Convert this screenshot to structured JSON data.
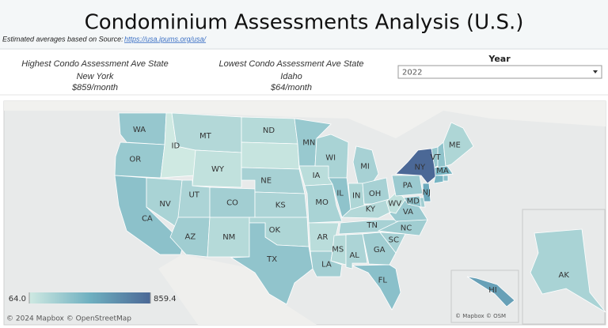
{
  "header": {
    "title": "Condominium Assessments Analysis (U.S.)",
    "source_label": "Estimated averages based on Source:",
    "source_link": "https://usa.ipums.org/usa/"
  },
  "kpis": [
    {
      "label": "Highest Condo Assessment Ave State",
      "state": "New York",
      "value": "$859/month"
    },
    {
      "label": "Lowest Condo Assessment Ave State",
      "state": "Idaho",
      "value": "$64/month"
    }
  ],
  "filter": {
    "label": "Year",
    "value": "2022"
  },
  "map": {
    "legend": {
      "min": {
        "value": 64,
        "label": "64.0"
      },
      "max": 859.4
    },
    "attribution": "© 2024 Mapbox © OpenStreetMap",
    "inset_attribution": "© Mapbox © OSM",
    "states": [
      {
        "abbr": "WA",
        "value": 300
      },
      {
        "abbr": "OR",
        "value": 290
      },
      {
        "abbr": "CA",
        "value": 340
      },
      {
        "abbr": "NV",
        "value": 220
      },
      {
        "abbr": "ID",
        "value": 64
      },
      {
        "abbr": "MT",
        "value": 180
      },
      {
        "abbr": "WY",
        "value": 120
      },
      {
        "abbr": "UT",
        "value": 210
      },
      {
        "abbr": "AZ",
        "value": 260
      },
      {
        "abbr": "CO",
        "value": 250
      },
      {
        "abbr": "NM",
        "value": 170
      },
      {
        "abbr": "ND",
        "value": 170
      },
      {
        "abbr": null,
        "value": 100
      },
      {
        "abbr": "NE",
        "value": 230
      },
      {
        "abbr": "KS",
        "value": 210
      },
      {
        "abbr": "OK",
        "value": 200
      },
      {
        "abbr": "TX",
        "value": 320
      },
      {
        "abbr": "MN",
        "value": 290
      },
      {
        "abbr": "IA",
        "value": 150
      },
      {
        "abbr": "MO",
        "value": 220
      },
      {
        "abbr": "AR",
        "value": 150
      },
      {
        "abbr": "LA",
        "value": 250
      },
      {
        "abbr": "WI",
        "value": 220
      },
      {
        "abbr": "IL",
        "value": 330
      },
      {
        "abbr": "MI",
        "value": 230
      },
      {
        "abbr": "IN",
        "value": 200
      },
      {
        "abbr": "OH",
        "value": 230
      },
      {
        "abbr": "KY",
        "value": 180
      },
      {
        "abbr": "TN",
        "value": 230
      },
      {
        "abbr": "MS",
        "value": 170
      },
      {
        "abbr": "AL",
        "value": 210
      },
      {
        "abbr": "GA",
        "value": 260
      },
      {
        "abbr": "FL",
        "value": 350
      },
      {
        "abbr": "SC",
        "value": 230
      },
      {
        "abbr": "NC",
        "value": 260
      },
      {
        "abbr": "VA",
        "value": 280
      },
      {
        "abbr": "WV",
        "value": 130
      },
      {
        "abbr": "PA",
        "value": 280
      },
      {
        "abbr": "NY",
        "value": 859
      },
      {
        "abbr": "VT",
        "value": 300
      },
      {
        "abbr": null,
        "value": 330
      },
      {
        "abbr": "ME",
        "value": 200
      },
      {
        "abbr": "MA",
        "value": 420
      },
      {
        "abbr": null,
        "value": 430
      },
      {
        "abbr": null,
        "value": 350
      },
      {
        "abbr": "NJ",
        "value": 500
      },
      {
        "abbr": null,
        "value": 250
      },
      {
        "abbr": "MD",
        "value": 330
      },
      {
        "abbr": "AK",
        "value": 220
      },
      {
        "abbr": "HI",
        "value": 550
      }
    ]
  }
}
